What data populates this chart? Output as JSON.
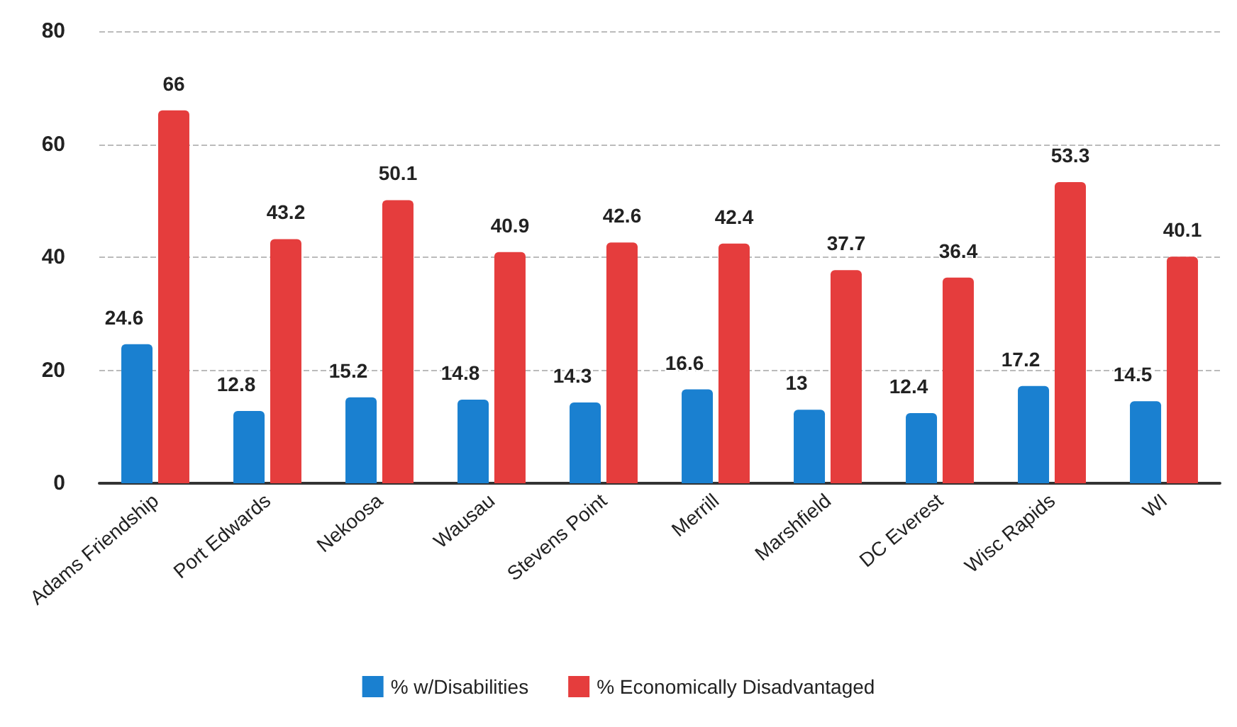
{
  "chart_data": {
    "type": "bar",
    "categories": [
      "Adams Friendship",
      "Port Edwards",
      "Nekoosa",
      "Wausau",
      "Stevens Point",
      "Merrill",
      "Marshfield",
      "DC Everest",
      "Wisc Rapids",
      "WI"
    ],
    "series": [
      {
        "name": "% w/Disabilities",
        "color": "#1a80d0",
        "values": [
          24.6,
          12.8,
          15.2,
          14.8,
          14.3,
          16.6,
          13,
          12.4,
          17.2,
          14.5
        ]
      },
      {
        "name": "% Economically Disadvantaged",
        "color": "#e53d3d",
        "values": [
          66,
          43.2,
          50.1,
          40.9,
          42.6,
          42.4,
          37.7,
          36.4,
          53.3,
          40.1
        ]
      }
    ],
    "ylim": [
      0,
      80
    ],
    "yticks": [
      0,
      20,
      40,
      60,
      80
    ],
    "grid": "y",
    "legend": "bottom",
    "data_labels": true
  }
}
